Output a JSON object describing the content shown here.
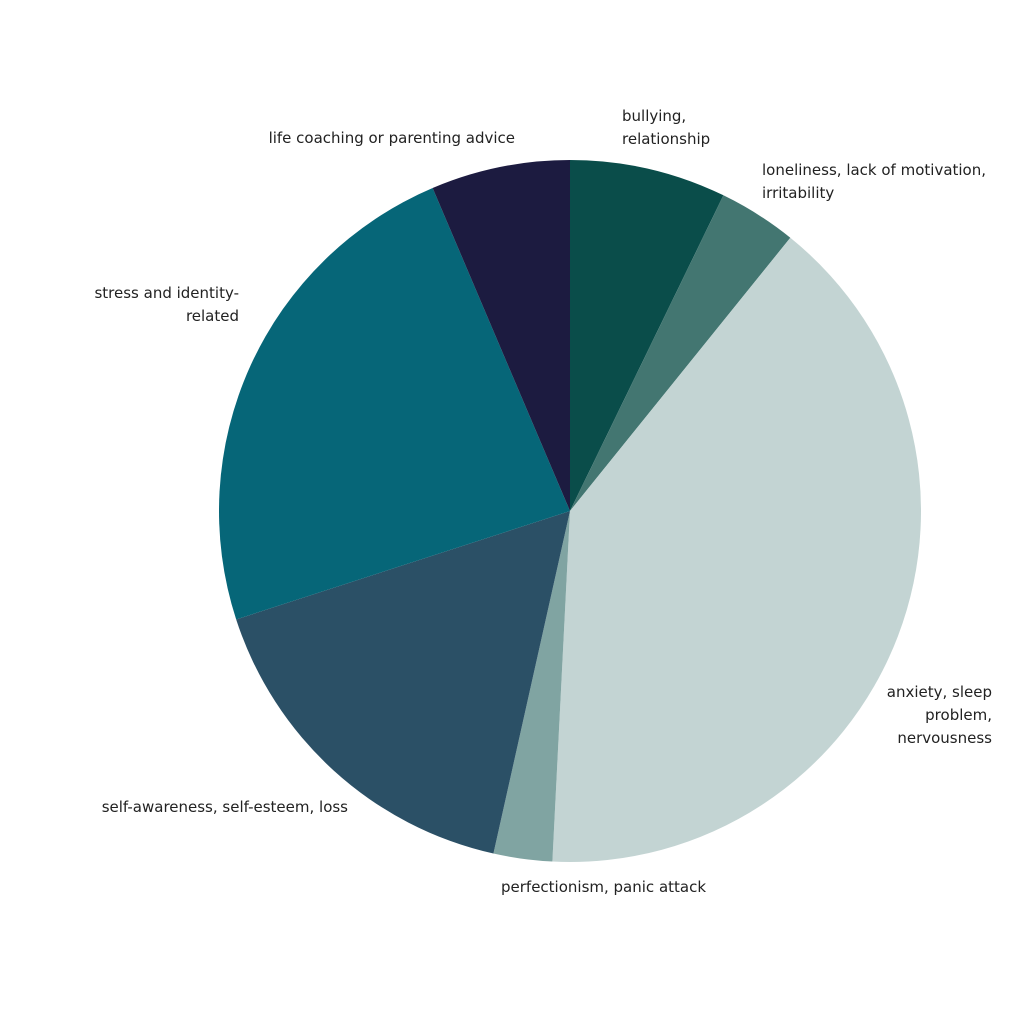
{
  "chart_data": {
    "type": "pie",
    "categories": [
      "bullying, relationship",
      "loneliness, lack of motivation, irritability",
      "anxiety, sleep problem, nervousness",
      "perfectionism, panic attack",
      "self-awareness, self-esteem, loss",
      "stress and identity-related",
      "life coaching or parenting advice"
    ],
    "values": [
      7.2,
      3.6,
      40,
      2.7,
      16.5,
      23.6,
      6.4
    ],
    "colors": [
      "#0a4d4a",
      "#437671",
      "#c3d4d3",
      "#80a4a2",
      "#2b5066",
      "#066678",
      "#1c1b40"
    ]
  }
}
